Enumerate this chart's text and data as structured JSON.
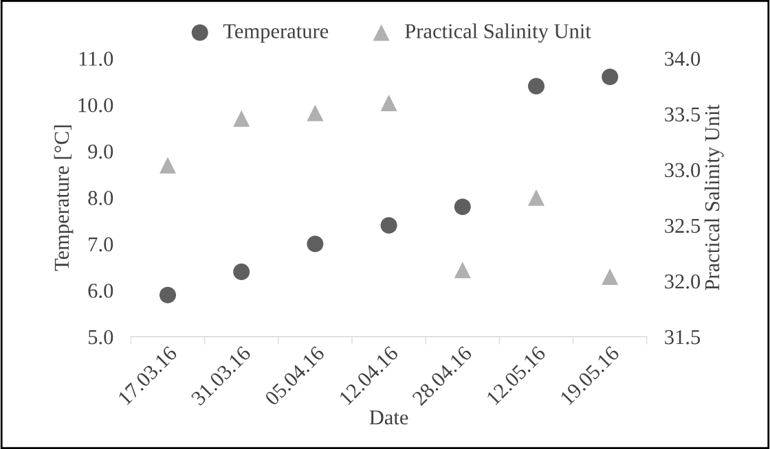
{
  "chart_data": {
    "type": "scatter",
    "xlabel": "Date",
    "ylabel": "Temperature [°C]",
    "y2label": "Practical Salinity Unit",
    "categories": [
      "17.03.16",
      "31.03.16",
      "05.04.16",
      "12.04.16",
      "28.04.16",
      "12.05.16",
      "19.05.16"
    ],
    "series": [
      {
        "name": "Temperature",
        "color": "#5f5f5f",
        "marker": "circle",
        "values": [
          5.9,
          6.4,
          7.0,
          7.4,
          7.8,
          10.4,
          10.6
        ]
      },
      {
        "name": "Practical Salinity Unit",
        "color": "#b0b0b0",
        "marker": "triangle",
        "axis": "y2",
        "values": [
          33.04,
          33.46,
          33.51,
          33.6,
          32.1,
          32.75,
          32.04
        ]
      }
    ],
    "ylim": [
      5.0,
      11.0
    ],
    "yticks": [
      {
        "value": 5,
        "label": "5.0"
      },
      {
        "value": 6,
        "label": "6.0"
      },
      {
        "value": 7,
        "label": "7.0"
      },
      {
        "value": 8,
        "label": "8.0"
      },
      {
        "value": 9,
        "label": "9.0"
      },
      {
        "value": 10,
        "label": "10.0"
      },
      {
        "value": 11,
        "label": "11.0"
      }
    ],
    "y2lim": [
      31.5,
      34.0
    ],
    "y2ticks": [
      {
        "value": 31.5,
        "label": "31.5"
      },
      {
        "value": 32,
        "label": "32.0"
      },
      {
        "value": 32.5,
        "label": "32.5"
      },
      {
        "value": 33,
        "label": "33.0"
      },
      {
        "value": 33.5,
        "label": "33.5"
      },
      {
        "value": 34,
        "label": "34.0"
      }
    ],
    "legend": "top",
    "grid": false
  }
}
